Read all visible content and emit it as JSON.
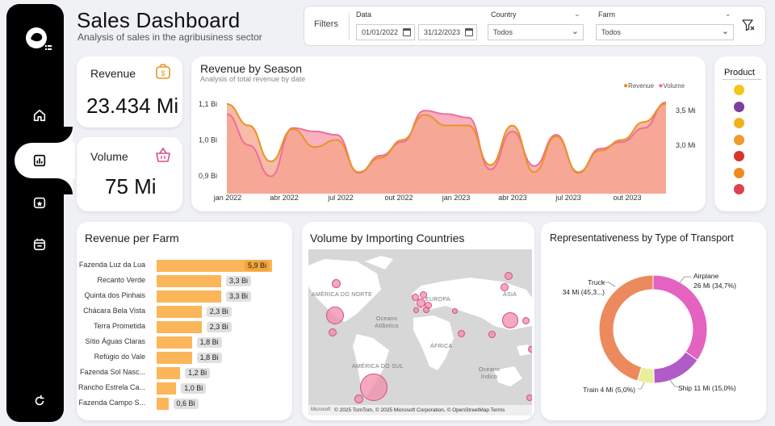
{
  "header": {
    "title": "Sales Dashboard",
    "subtitle": "Analysis of sales in the agribusiness sector"
  },
  "filters": {
    "label": "Filters",
    "date_label": "Data",
    "date_from": "01/01/2022",
    "date_to": "31/12/2023",
    "country_label": "Country",
    "country_value": "Todos",
    "farm_label": "Farm",
    "farm_value": "Todos"
  },
  "kpis": {
    "revenue_label": "Revenue",
    "revenue_value": "23.434 Mi",
    "volume_label": "Volume",
    "volume_value": "75 Mi"
  },
  "colors": {
    "revenue": "#e8951f",
    "volume": "#f06d9c",
    "bar": "#fbb659"
  },
  "season": {
    "title": "Revenue by Season",
    "subtitle": "Analysis of total revenue by date",
    "legend_revenue": "Revenue",
    "legend_volume": "Volume"
  },
  "farm_panel": {
    "title": "Revenue per Farm",
    "rows": [
      {
        "name": "Fazenda Luz da Lua",
        "value": 5.9,
        "label": "5,9 Bi"
      },
      {
        "name": "Recanto Verde",
        "value": 3.3,
        "label": "3,3 Bi"
      },
      {
        "name": "Quinta dos Pinhais",
        "value": 3.3,
        "label": "3,3 Bi"
      },
      {
        "name": "Chácara Bela Vista",
        "value": 2.3,
        "label": "2,3 Bi"
      },
      {
        "name": "Terra Prometida",
        "value": 2.3,
        "label": "2,3 Bi"
      },
      {
        "name": "Sítio Águas Claras",
        "value": 1.8,
        "label": "1,8 Bi"
      },
      {
        "name": "Refúgio do Vale",
        "value": 1.8,
        "label": "1,8 Bi"
      },
      {
        "name": "Fazenda Sol Nasc...",
        "value": 1.2,
        "label": "1,2 Bi"
      },
      {
        "name": "Rancho Estrela Ca...",
        "value": 1.0,
        "label": "1,0 Bi"
      },
      {
        "name": "Fazenda Campo S...",
        "value": 0.6,
        "label": "0,6 Bi"
      }
    ]
  },
  "map_panel": {
    "title": "Volume by Importing Countries",
    "labels": [
      "AMÉRICA DO NORTE",
      "EUROPA",
      "ÁSIA",
      "Oceano Atlântico",
      "ÁFRICA",
      "AMÉRICA DO SUL",
      "Oceano Índico"
    ],
    "attribution": "© 2025 TomTom, © 2025 Microsoft Corporation, © OpenStreetMap  Terms",
    "brand": "Microsoft"
  },
  "transport_panel": {
    "title": "Representativeness by Type of Transport",
    "segments": [
      {
        "name": "Airplane",
        "label": "26 Mi (34,7%)",
        "pct": 34.7,
        "color": "#e462c0"
      },
      {
        "name": "Ship",
        "label": "Ship 11 Mi (15,0%)",
        "pct": 15.0,
        "color": "#b05bc8"
      },
      {
        "name": "Train",
        "label": "Train 4 Mi (5,0%)",
        "pct": 5.0,
        "color": "#e8ef9a"
      },
      {
        "name": "Truck",
        "label": "34 Mi (45,3...)",
        "pct": 45.3,
        "color": "#ec8a5e"
      }
    ]
  },
  "product_panel": {
    "title": "Product",
    "icons": [
      "banana-icon",
      "grapes-icon",
      "mango-icon",
      "papaya-icon",
      "apple-icon",
      "orange-icon",
      "watermelon-icon"
    ]
  },
  "chart_data": {
    "type": "area",
    "title": "Revenue by Season",
    "subtitle": "Analysis of total revenue by date",
    "x_ticks": [
      "jan 2022",
      "abr 2022",
      "jul 2022",
      "out 2022",
      "jan 2023",
      "abr 2023",
      "jul 2023",
      "out 2023"
    ],
    "y_left_ticks": [
      "1,1 Bi",
      "1,0 Bi",
      "0,9 Bi"
    ],
    "y_right_ticks": [
      "3,5 Mi",
      "3,0 Mi"
    ],
    "ylim_left": [
      0.85,
      1.12
    ],
    "series": [
      {
        "name": "Revenue",
        "axis": "left",
        "values": [
          1.1,
          1.04,
          0.94,
          1.03,
          0.98,
          1.0,
          0.91,
          0.95,
          1.0,
          1.07,
          1.04,
          1.04,
          0.93,
          1.04,
          0.91,
          1.01,
          0.91,
          0.97,
          1.0,
          1.05,
          1.1
        ]
      },
      {
        "name": "Volume",
        "axis": "right",
        "values": [
          3.45,
          3.0,
          2.55,
          3.25,
          3.2,
          3.15,
          2.6,
          2.85,
          3.05,
          3.5,
          3.45,
          3.4,
          2.65,
          3.2,
          2.7,
          3.15,
          2.6,
          2.95,
          3.05,
          3.25,
          3.62
        ]
      }
    ],
    "legend": [
      "Revenue",
      "Volume"
    ]
  }
}
